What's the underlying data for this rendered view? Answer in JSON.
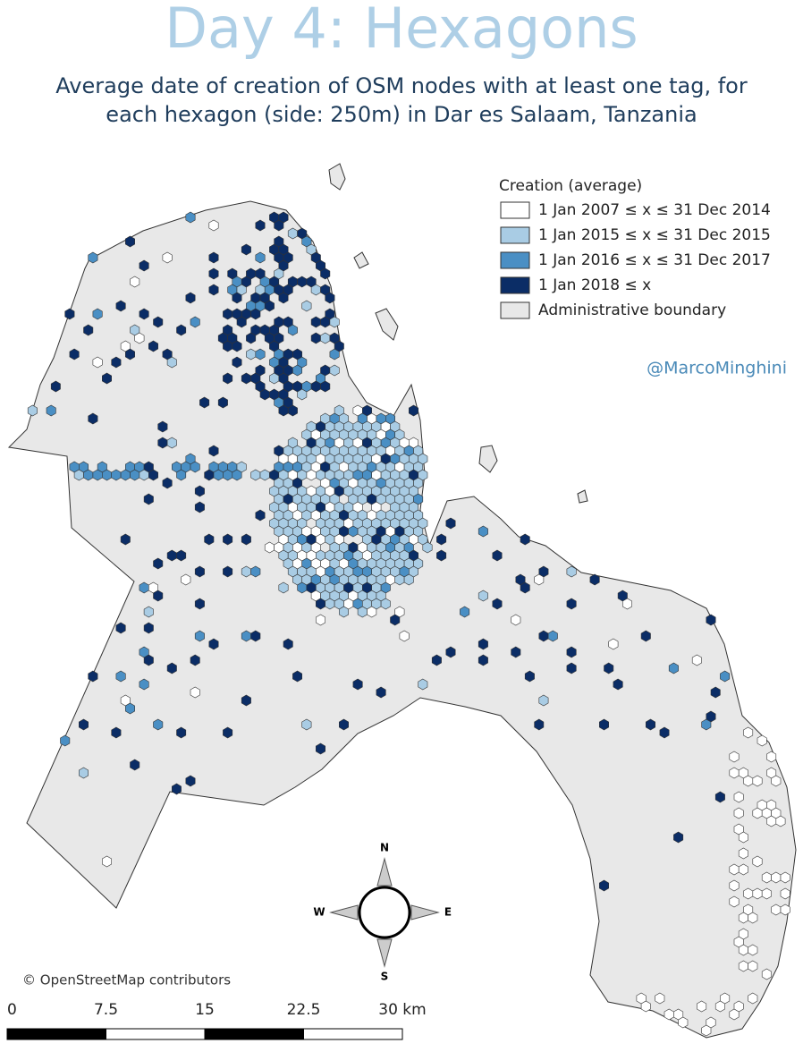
{
  "header": {
    "title": "Day 4: Hexagons",
    "subtitle_lines": [
      "Average date of creation of OSM nodes with at least one tag, for",
      "each hexagon (side: 250m) in Dar es Salaam, Tanzania"
    ]
  },
  "legend": {
    "title": "Creation (average)",
    "items": [
      {
        "label": "1 Jan 2007 ≤ x ≤ 31 Dec 2014",
        "color": "#ffffff"
      },
      {
        "label": "1 Jan 2015 ≤ x ≤ 31 Dec 2015",
        "color": "#a9cce4"
      },
      {
        "label": "1 Jan 2016 ≤ x ≤ 31 Dec 2017",
        "color": "#4a8fc4"
      },
      {
        "label": "1 Jan 2018 ≤ x",
        "color": "#0b2d66"
      },
      {
        "label": "Administrative boundary",
        "color": "#e8e8e8"
      }
    ]
  },
  "credit": "@MarcoMinghini",
  "compass": {
    "n": "N",
    "w": "W",
    "e": "E",
    "s": "S"
  },
  "attribution": "© OpenStreetMap contributors",
  "scale_bar": {
    "labels": [
      "0",
      "7.5",
      "15",
      "22.5",
      "30 km"
    ]
  }
}
